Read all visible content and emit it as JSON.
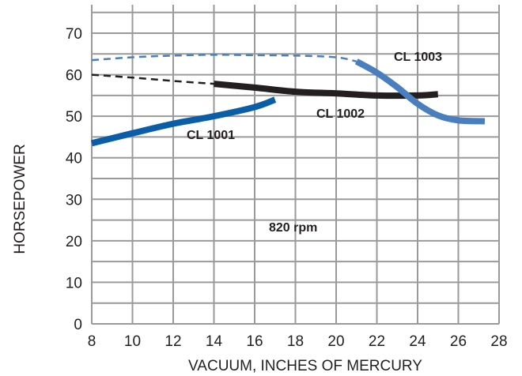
{
  "chart_data": {
    "type": "line",
    "title": "",
    "xlabel": "VACUUM, INCHES OF MERCURY",
    "ylabel": "HORSEPOWER",
    "xlim": [
      8,
      28
    ],
    "ylim": [
      0,
      75
    ],
    "xticks": [
      8,
      10,
      12,
      14,
      16,
      18,
      20,
      22,
      24,
      26,
      28
    ],
    "yticks": [
      0,
      10,
      20,
      30,
      40,
      50,
      60,
      70
    ],
    "grid": true,
    "annotation": "820 rpm",
    "series": [
      {
        "name": "CL 1001",
        "color": "#0a5ea8",
        "points": [
          [
            8,
            43.5
          ],
          [
            10,
            45.9
          ],
          [
            12,
            48.2
          ],
          [
            14,
            50.0
          ],
          [
            16,
            52.2
          ],
          [
            17,
            54.0
          ]
        ],
        "dashed_points": []
      },
      {
        "name": "CL 1002",
        "color": "#231f20",
        "dashed_points": [
          [
            8,
            60.0
          ],
          [
            10,
            59.3
          ],
          [
            12,
            58.5
          ],
          [
            14,
            57.8
          ]
        ],
        "points": [
          [
            14,
            57.8
          ],
          [
            16,
            56.9
          ],
          [
            18,
            55.9
          ],
          [
            20,
            55.5
          ],
          [
            22,
            55.0
          ],
          [
            24,
            55.0
          ],
          [
            25,
            55.3
          ]
        ]
      },
      {
        "name": "CL 1003",
        "color": "#4a7fbf",
        "dashed_points": [
          [
            8,
            63.5
          ],
          [
            10,
            64.2
          ],
          [
            12,
            64.6
          ],
          [
            14,
            64.8
          ],
          [
            16,
            64.7
          ],
          [
            18,
            64.6
          ],
          [
            20,
            64.2
          ],
          [
            21,
            63.2
          ]
        ],
        "points": [
          [
            21,
            63.2
          ],
          [
            22,
            60.5
          ],
          [
            23,
            57.0
          ],
          [
            24,
            53.0
          ],
          [
            25,
            50.2
          ],
          [
            26,
            49.0
          ],
          [
            27.3,
            48.8
          ]
        ]
      }
    ]
  }
}
